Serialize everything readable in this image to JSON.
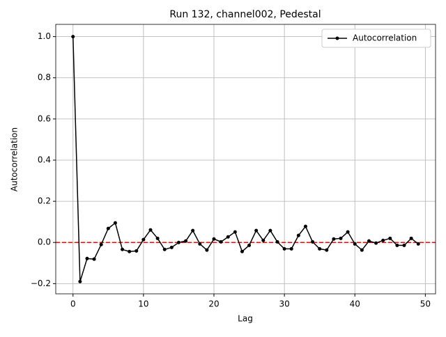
{
  "chart_data": {
    "type": "line",
    "title": "Run 132, channel002, Pedestal",
    "xlabel": "Lag",
    "ylabel": "Autocorrelation",
    "x": [
      0,
      1,
      2,
      3,
      4,
      5,
      6,
      7,
      8,
      9,
      10,
      11,
      12,
      13,
      14,
      15,
      16,
      17,
      18,
      19,
      20,
      21,
      22,
      23,
      24,
      25,
      26,
      27,
      28,
      29,
      30,
      31,
      32,
      33,
      34,
      35,
      36,
      37,
      38,
      39,
      40,
      41,
      42,
      43,
      44,
      45,
      46,
      47,
      48,
      49
    ],
    "series": [
      {
        "name": "Autocorrelation",
        "color": "#000000",
        "values": [
          1.0,
          -0.19,
          -0.078,
          -0.081,
          -0.01,
          0.068,
          0.095,
          -0.034,
          -0.044,
          -0.041,
          0.014,
          0.061,
          0.02,
          -0.034,
          -0.024,
          0.0,
          0.007,
          0.058,
          -0.007,
          -0.037,
          0.017,
          0.003,
          0.027,
          0.051,
          -0.044,
          -0.014,
          0.058,
          0.01,
          0.058,
          0.003,
          -0.031,
          -0.031,
          0.034,
          0.078,
          0.003,
          -0.031,
          -0.037,
          0.017,
          0.02,
          0.051,
          -0.007,
          -0.037,
          0.007,
          -0.003,
          0.01,
          0.02,
          -0.014,
          -0.014,
          0.02,
          -0.007
        ]
      }
    ],
    "xlim": [
      -2.45,
      51.45
    ],
    "xticks": [
      0,
      10,
      20,
      30,
      40,
      50
    ],
    "ylim": [
      -0.2495,
      1.0595
    ],
    "yticks": [
      {
        "value": -0.2,
        "label": "−0.2"
      },
      {
        "value": 0,
        "label": "0.0"
      },
      {
        "value": 0.2,
        "label": "0.2"
      },
      {
        "value": 0.4,
        "label": "0.4"
      },
      {
        "value": 0.6,
        "label": "0.6"
      },
      {
        "value": 0.8,
        "label": "0.8"
      },
      {
        "value": 1.0,
        "label": "1.0"
      }
    ],
    "grid": true,
    "legend": "upper right",
    "reference_line": {
      "y": 0,
      "color": "#ff0000"
    }
  }
}
